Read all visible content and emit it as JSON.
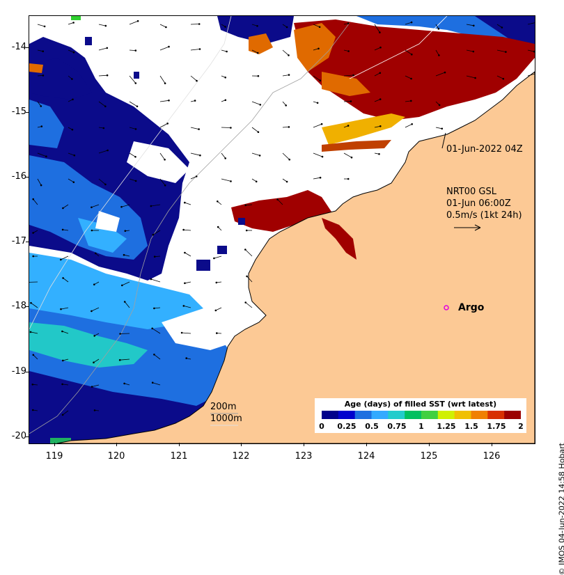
{
  "yaxis": {
    "ticks": [
      "-14",
      "-15",
      "-16",
      "-17",
      "-18",
      "-19",
      "-20"
    ]
  },
  "xaxis": {
    "ticks": [
      "119",
      "120",
      "121",
      "122",
      "123",
      "124",
      "125",
      "126"
    ]
  },
  "annotations": {
    "swath_time": "01-Jun-2022 04Z",
    "current_product": "NRT00 GSL",
    "current_time": "01-Jun 06:00Z",
    "current_scale": "0.5m/s (1kt 24h)",
    "argo_label": "Argo",
    "isobath_200": "200m",
    "isobath_1000": "1000m"
  },
  "colorbar": {
    "title": "Age (days) of filled SST (wrt latest)",
    "labels": [
      "0",
      "0.25",
      "0.5",
      "0.75",
      "1",
      "1.25",
      "1.5",
      "1.75",
      "2"
    ],
    "colors": [
      "#00008b",
      "#0000cd",
      "#1e6fe0",
      "#33aaff",
      "#22cccc",
      "#00c060",
      "#40d040",
      "#d0f000",
      "#f0c000",
      "#f08000",
      "#d83000",
      "#9b0000"
    ]
  },
  "credit": "© IMOS 04-Jun-2022 14:58 Hobart",
  "colors": {
    "land": "#fcc995",
    "deep_blue": "#0b0b8a",
    "mid_blue": "#1e6fe0",
    "light_blue": "#33b0ff",
    "teal": "#22c8c8",
    "dark_red": "#a00000",
    "orange": "#e06a00",
    "yellow": "#f0b000"
  }
}
